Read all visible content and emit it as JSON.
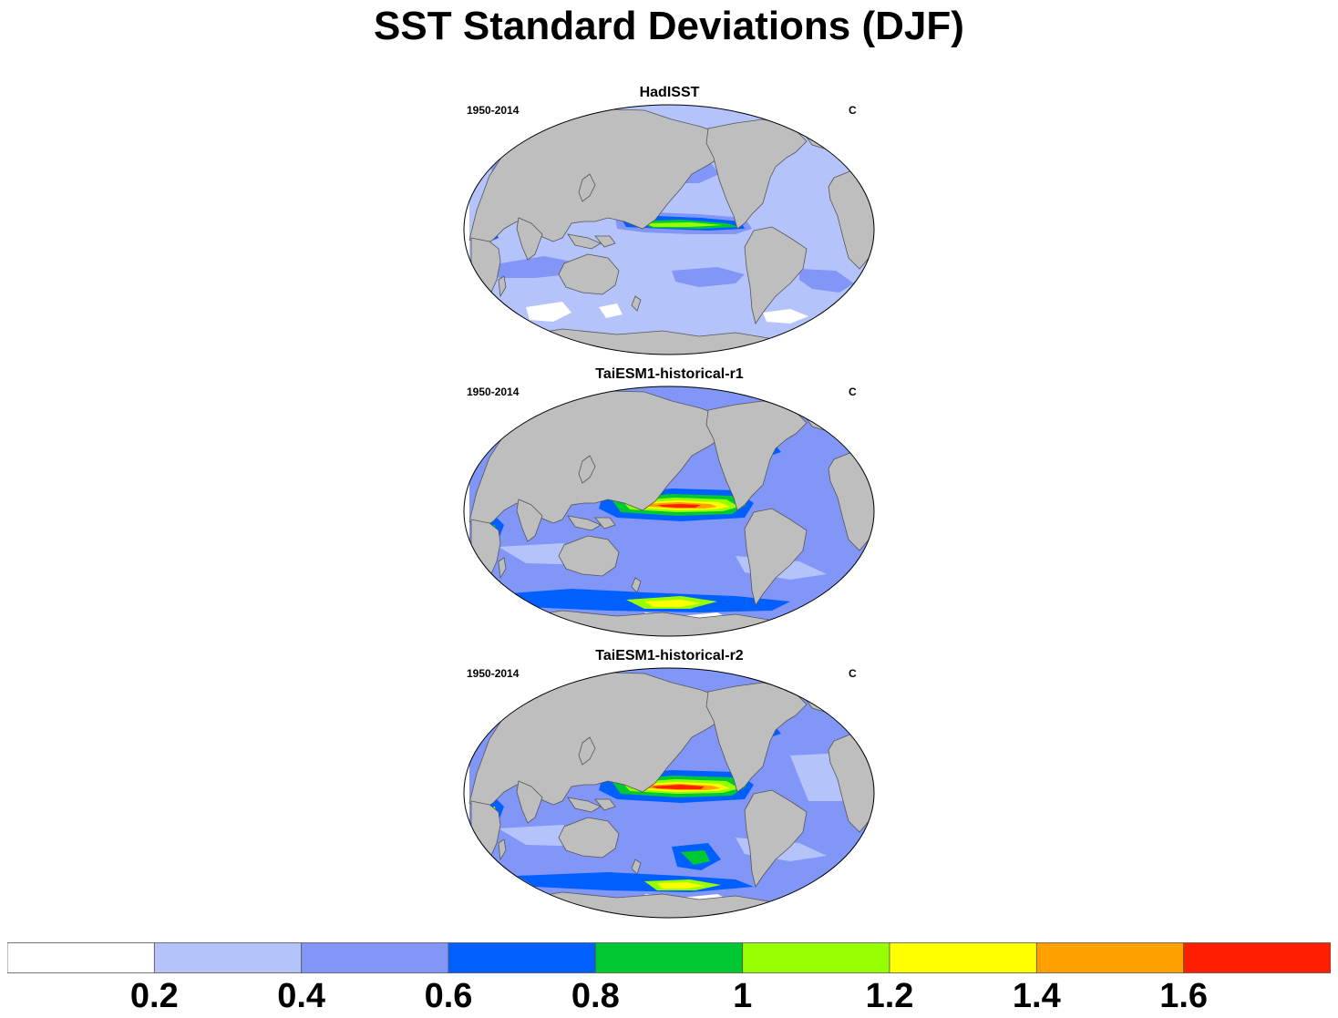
{
  "title": "SST Standard Deviations (DJF)",
  "panels": [
    {
      "name": "HadISST",
      "period": "1950-2014",
      "units": "C",
      "variant": "obs"
    },
    {
      "name": "TaiESM1-historical-r1",
      "period": "1950-2014",
      "units": "C",
      "variant": "model1"
    },
    {
      "name": "TaiESM1-historical-r2",
      "period": "1950-2014",
      "units": "C",
      "variant": "model2"
    }
  ],
  "colorbar": {
    "colors": [
      "#ffffff",
      "#b4c3fa",
      "#8296f7",
      "#0060ff",
      "#00c832",
      "#96ff00",
      "#ffff00",
      "#ffa000",
      "#ff1e00"
    ],
    "labels": [
      "0.2",
      "0.4",
      "0.6",
      "0.8",
      "1",
      "1.2",
      "1.4",
      "1.6"
    ]
  },
  "colors": {
    "land": "#bebebe",
    "coast": "#555555"
  }
}
